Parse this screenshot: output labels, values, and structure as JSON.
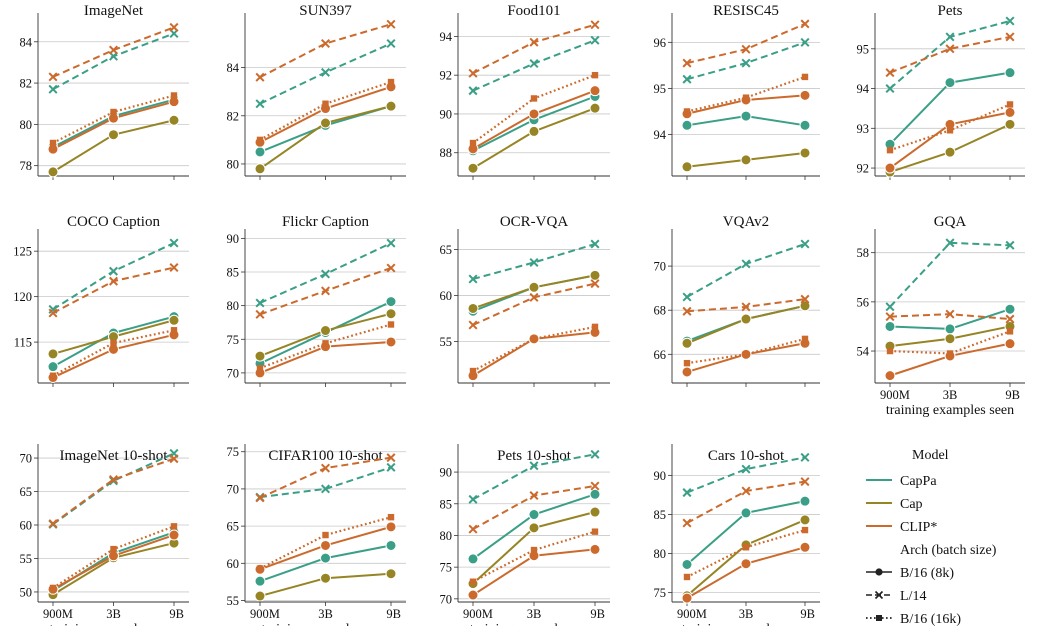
{
  "colors": {
    "CapPa": "#3a9f86",
    "Cap": "#968425",
    "CLIP*": "#cb6a2c",
    "grid": "#c8c8c8",
    "axis": "#333333"
  },
  "legend": {
    "model_title": "Model",
    "models": [
      "CapPa",
      "Cap",
      "CLIP*"
    ],
    "arch_title": "Arch (batch size)",
    "archs": [
      "B/16 (8k)",
      "L/14",
      "B/16 (16k)"
    ]
  },
  "x_tick_labels": [
    "900M",
    "3B",
    "9B"
  ],
  "x_axis_label": "training examples seen",
  "chart_data": [
    {
      "type": "line",
      "title": "ImageNet",
      "categories": [
        "900M",
        "3B",
        "9B"
      ],
      "yticks": [
        78,
        80,
        82,
        84
      ],
      "ylim": [
        77.5,
        85.2
      ],
      "xlabel": "",
      "ylabel": "",
      "series": [
        {
          "name": "CapPa B/16 (8k)",
          "values": [
            78.9,
            80.4,
            81.2
          ]
        },
        {
          "name": "Cap B/16 (8k)",
          "values": [
            77.7,
            79.5,
            80.2
          ]
        },
        {
          "name": "CLIP* B/16 (8k)",
          "values": [
            78.8,
            80.3,
            81.1
          ]
        },
        {
          "name": "CapPa L/14",
          "values": [
            81.7,
            83.3,
            84.4
          ]
        },
        {
          "name": "CLIP* L/14",
          "values": [
            82.3,
            83.6,
            84.7
          ]
        },
        {
          "name": "CLIP* B/16 (16k)",
          "values": [
            79.1,
            80.6,
            81.4
          ]
        }
      ]
    },
    {
      "type": "line",
      "title": "SUN397",
      "categories": [
        "900M",
        "3B",
        "9B"
      ],
      "yticks": [
        80,
        82,
        84
      ],
      "ylim": [
        79.5,
        86.1
      ],
      "xlabel": "",
      "ylabel": "",
      "series": [
        {
          "name": "CapPa B/16 (8k)",
          "values": [
            80.5,
            81.6,
            82.4
          ]
        },
        {
          "name": "Cap B/16 (8k)",
          "values": [
            79.8,
            81.7,
            82.4
          ]
        },
        {
          "name": "CLIP* B/16 (8k)",
          "values": [
            80.9,
            82.3,
            83.2
          ]
        },
        {
          "name": "CapPa L/14",
          "values": [
            82.5,
            83.8,
            85.0
          ]
        },
        {
          "name": "CLIP* L/14",
          "values": [
            83.6,
            85.0,
            85.8
          ]
        },
        {
          "name": "CLIP* B/16 (16k)",
          "values": [
            81.0,
            82.5,
            83.4
          ]
        }
      ]
    },
    {
      "type": "line",
      "title": "Food101",
      "categories": [
        "900M",
        "3B",
        "9B"
      ],
      "yticks": [
        88,
        90,
        92,
        94
      ],
      "ylim": [
        86.8,
        95.0
      ],
      "xlabel": "",
      "ylabel": "",
      "series": [
        {
          "name": "CapPa B/16 (8k)",
          "values": [
            88.1,
            89.7,
            90.9
          ]
        },
        {
          "name": "Cap B/16 (8k)",
          "values": [
            87.2,
            89.1,
            90.3
          ]
        },
        {
          "name": "CLIP* B/16 (8k)",
          "values": [
            88.2,
            90.0,
            91.2
          ]
        },
        {
          "name": "CapPa L/14",
          "values": [
            91.2,
            92.6,
            93.8
          ]
        },
        {
          "name": "CLIP* L/14",
          "values": [
            92.1,
            93.7,
            94.6
          ]
        },
        {
          "name": "CLIP* B/16 (16k)",
          "values": [
            88.5,
            90.8,
            92.0
          ]
        }
      ]
    },
    {
      "type": "line",
      "title": "RESISC45",
      "categories": [
        "900M",
        "3B",
        "9B"
      ],
      "yticks": [
        94,
        95,
        96
      ],
      "ylim": [
        93.1,
        96.55
      ],
      "xlabel": "",
      "ylabel": "",
      "series": [
        {
          "name": "CapPa B/16 (8k)",
          "values": [
            94.2,
            94.4,
            94.2
          ]
        },
        {
          "name": "Cap B/16 (8k)",
          "values": [
            93.3,
            93.45,
            93.6
          ]
        },
        {
          "name": "CLIP* B/16 (8k)",
          "values": [
            94.45,
            94.75,
            94.85
          ]
        },
        {
          "name": "CapPa L/14",
          "values": [
            95.2,
            95.55,
            96.0
          ]
        },
        {
          "name": "CLIP* L/14",
          "values": [
            95.55,
            95.85,
            96.4
          ]
        },
        {
          "name": "CLIP* B/16 (16k)",
          "values": [
            94.5,
            94.8,
            95.25
          ]
        }
      ]
    },
    {
      "type": "line",
      "title": "Pets",
      "categories": [
        "900M",
        "3B",
        "9B"
      ],
      "yticks": [
        92,
        93,
        94,
        95
      ],
      "ylim": [
        91.8,
        95.8
      ],
      "xlabel": "",
      "ylabel": "",
      "series": [
        {
          "name": "CapPa B/16 (8k)",
          "values": [
            92.6,
            94.15,
            94.4
          ]
        },
        {
          "name": "Cap B/16 (8k)",
          "values": [
            91.9,
            92.4,
            93.1
          ]
        },
        {
          "name": "CLIP* B/16 (8k)",
          "values": [
            92.0,
            93.1,
            93.4
          ]
        },
        {
          "name": "CapPa L/14",
          "values": [
            94.0,
            95.3,
            95.7
          ]
        },
        {
          "name": "CLIP* L/14",
          "values": [
            94.4,
            95.0,
            95.3
          ]
        },
        {
          "name": "CLIP* B/16 (16k)",
          "values": [
            92.45,
            92.95,
            93.6
          ]
        }
      ]
    },
    {
      "type": "line",
      "title": "COCO Caption",
      "categories": [
        "900M",
        "3B",
        "9B"
      ],
      "yticks": [
        115,
        120,
        125
      ],
      "ylim": [
        110.5,
        127.0
      ],
      "xlabel": "",
      "ylabel": "",
      "series": [
        {
          "name": "CapPa B/16 (8k)",
          "values": [
            112.3,
            116.0,
            117.8
          ]
        },
        {
          "name": "Cap B/16 (8k)",
          "values": [
            113.7,
            115.6,
            117.4
          ]
        },
        {
          "name": "CLIP* B/16 (8k)",
          "values": [
            111.1,
            114.2,
            115.8
          ]
        },
        {
          "name": "CapPa L/14",
          "values": [
            118.6,
            122.8,
            125.9
          ]
        },
        {
          "name": "CLIP* L/14",
          "values": [
            118.2,
            121.7,
            123.2
          ]
        },
        {
          "name": "CLIP* B/16 (16k)",
          "values": [
            111.3,
            114.9,
            116.3
          ]
        }
      ]
    },
    {
      "type": "line",
      "title": "Flickr Caption",
      "categories": [
        "900M",
        "3B",
        "9B"
      ],
      "yticks": [
        70,
        75,
        80,
        85,
        90
      ],
      "ylim": [
        68.5,
        90.8
      ],
      "xlabel": "",
      "ylabel": "",
      "series": [
        {
          "name": "CapPa B/16 (8k)",
          "values": [
            71.4,
            76.0,
            80.6
          ]
        },
        {
          "name": "Cap B/16 (8k)",
          "values": [
            72.5,
            76.3,
            78.8
          ]
        },
        {
          "name": "CLIP* B/16 (8k)",
          "values": [
            70.0,
            73.9,
            74.6
          ]
        },
        {
          "name": "CapPa L/14",
          "values": [
            80.4,
            84.7,
            89.3
          ]
        },
        {
          "name": "CLIP* L/14",
          "values": [
            78.7,
            82.2,
            85.6
          ]
        },
        {
          "name": "CLIP* B/16 (16k)",
          "values": [
            70.7,
            74.4,
            77.2
          ]
        }
      ]
    },
    {
      "type": "line",
      "title": "OCR-VQA",
      "categories": [
        "900M",
        "3B",
        "9B"
      ],
      "yticks": [
        55,
        60,
        65
      ],
      "ylim": [
        50.5,
        66.8
      ],
      "xlabel": "",
      "ylabel": "",
      "series": [
        {
          "name": "CapPa B/16 (8k)",
          "values": [
            58.3,
            60.9,
            62.2
          ]
        },
        {
          "name": "Cap B/16 (8k)",
          "values": [
            58.6,
            60.9,
            62.2
          ]
        },
        {
          "name": "CLIP* B/16 (8k)",
          "values": [
            51.3,
            55.3,
            56.0
          ]
        },
        {
          "name": "CapPa L/14",
          "values": [
            61.8,
            63.6,
            65.6
          ]
        },
        {
          "name": "CLIP* L/14",
          "values": [
            56.8,
            59.8,
            61.3
          ]
        },
        {
          "name": "CLIP* B/16 (16k)",
          "values": [
            51.8,
            55.3,
            56.6
          ]
        }
      ]
    },
    {
      "type": "line",
      "title": "VQAv2",
      "categories": [
        "900M",
        "3B",
        "9B"
      ],
      "yticks": [
        66,
        68,
        70
      ],
      "ylim": [
        64.7,
        71.5
      ],
      "xlabel": "",
      "ylabel": "",
      "series": [
        {
          "name": "CapPa B/16 (8k)",
          "values": [
            66.6,
            67.6,
            68.2
          ]
        },
        {
          "name": "Cap B/16 (8k)",
          "values": [
            66.5,
            67.6,
            68.2
          ]
        },
        {
          "name": "CLIP* B/16 (8k)",
          "values": [
            65.2,
            66.0,
            66.5
          ]
        },
        {
          "name": "CapPa L/14",
          "values": [
            68.6,
            70.1,
            71.0
          ]
        },
        {
          "name": "CLIP* L/14",
          "values": [
            67.95,
            68.15,
            68.5
          ]
        },
        {
          "name": "CLIP* B/16 (16k)",
          "values": [
            65.6,
            66.0,
            66.7
          ]
        }
      ]
    },
    {
      "type": "line",
      "title": "GQA",
      "categories": [
        "900M",
        "3B",
        "9B"
      ],
      "yticks": [
        54,
        56,
        58
      ],
      "ylim": [
        52.7,
        58.8
      ],
      "xlabel": "training examples seen",
      "ylabel": "",
      "series": [
        {
          "name": "CapPa B/16 (8k)",
          "values": [
            55.0,
            54.9,
            55.7
          ]
        },
        {
          "name": "Cap B/16 (8k)",
          "values": [
            54.2,
            54.5,
            55.0
          ]
        },
        {
          "name": "CLIP* B/16 (8k)",
          "values": [
            53.0,
            53.8,
            54.3
          ]
        },
        {
          "name": "CapPa L/14",
          "values": [
            55.8,
            58.4,
            58.3
          ]
        },
        {
          "name": "CLIP* L/14",
          "values": [
            55.4,
            55.5,
            55.3
          ]
        },
        {
          "name": "CLIP* B/16 (16k)",
          "values": [
            54.0,
            53.9,
            54.8
          ]
        }
      ]
    },
    {
      "type": "line",
      "title": "ImageNet 10-shot",
      "categories": [
        "900M",
        "3B",
        "9B"
      ],
      "yticks": [
        50,
        55,
        60,
        65,
        70
      ],
      "ylim": [
        48.5,
        71.5
      ],
      "xlabel": "training examples seen",
      "ylabel": "",
      "series": [
        {
          "name": "CapPa B/16 (8k)",
          "values": [
            50.2,
            55.8,
            58.9
          ]
        },
        {
          "name": "Cap B/16 (8k)",
          "values": [
            49.6,
            55.1,
            57.3
          ]
        },
        {
          "name": "CLIP* B/16 (8k)",
          "values": [
            50.4,
            55.4,
            58.5
          ]
        },
        {
          "name": "CapPa L/14",
          "values": [
            60.1,
            66.6,
            70.7
          ]
        },
        {
          "name": "CLIP* L/14",
          "values": [
            60.2,
            66.8,
            69.9
          ]
        },
        {
          "name": "CLIP* B/16 (16k)",
          "values": [
            50.6,
            56.4,
            59.8
          ]
        }
      ]
    },
    {
      "type": "line",
      "title": "CIFAR100 10-shot",
      "categories": [
        "900M",
        "3B",
        "9B"
      ],
      "yticks": [
        55,
        60,
        65,
        70,
        75
      ],
      "ylim": [
        54.8,
        75.5
      ],
      "xlabel": "training examples seen",
      "ylabel": "",
      "series": [
        {
          "name": "CapPa B/16 (8k)",
          "values": [
            57.6,
            60.7,
            62.4
          ]
        },
        {
          "name": "Cap B/16 (8k)",
          "values": [
            55.6,
            58.0,
            58.6
          ]
        },
        {
          "name": "CLIP* B/16 (8k)",
          "values": [
            59.2,
            62.4,
            64.9
          ]
        },
        {
          "name": "CapPa L/14",
          "values": [
            68.9,
            70.0,
            72.9
          ]
        },
        {
          "name": "CLIP* L/14",
          "values": [
            68.8,
            72.8,
            74.2
          ]
        },
        {
          "name": "CLIP* B/16 (16k)",
          "values": [
            59.3,
            63.8,
            66.2
          ]
        }
      ]
    },
    {
      "type": "line",
      "title": "Pets 10-shot",
      "categories": [
        "900M",
        "3B",
        "9B"
      ],
      "yticks": [
        70,
        75,
        80,
        85,
        90
      ],
      "ylim": [
        69.5,
        93.8
      ],
      "xlabel": "training examples seen",
      "ylabel": "",
      "series": [
        {
          "name": "CapPa B/16 (8k)",
          "values": [
            76.3,
            83.3,
            86.5
          ]
        },
        {
          "name": "Cap B/16 (8k)",
          "values": [
            72.4,
            81.2,
            83.7
          ]
        },
        {
          "name": "CLIP* B/16 (8k)",
          "values": [
            70.6,
            76.8,
            77.8
          ]
        },
        {
          "name": "CapPa L/14",
          "values": [
            85.7,
            91.0,
            92.8
          ]
        },
        {
          "name": "CLIP* L/14",
          "values": [
            81.0,
            86.3,
            87.8
          ]
        },
        {
          "name": "CLIP* B/16 (16k)",
          "values": [
            72.7,
            77.7,
            80.6
          ]
        }
      ]
    },
    {
      "type": "line",
      "title": "Cars 10-shot",
      "categories": [
        "900M",
        "3B",
        "9B"
      ],
      "yticks": [
        75,
        80,
        85,
        90
      ],
      "ylim": [
        73.8,
        93.5
      ],
      "xlabel": "training examples seen",
      "ylabel": "",
      "series": [
        {
          "name": "CapPa B/16 (8k)",
          "values": [
            78.6,
            85.2,
            86.7
          ]
        },
        {
          "name": "Cap B/16 (8k)",
          "values": [
            74.6,
            81.1,
            84.3
          ]
        },
        {
          "name": "CLIP* B/16 (8k)",
          "values": [
            74.3,
            78.7,
            80.8
          ]
        },
        {
          "name": "CapPa L/14",
          "values": [
            87.8,
            90.8,
            92.3
          ]
        },
        {
          "name": "CLIP* L/14",
          "values": [
            83.9,
            88.0,
            89.2
          ]
        },
        {
          "name": "CLIP* B/16 (16k)",
          "values": [
            77.0,
            80.8,
            83.0
          ]
        }
      ]
    }
  ]
}
